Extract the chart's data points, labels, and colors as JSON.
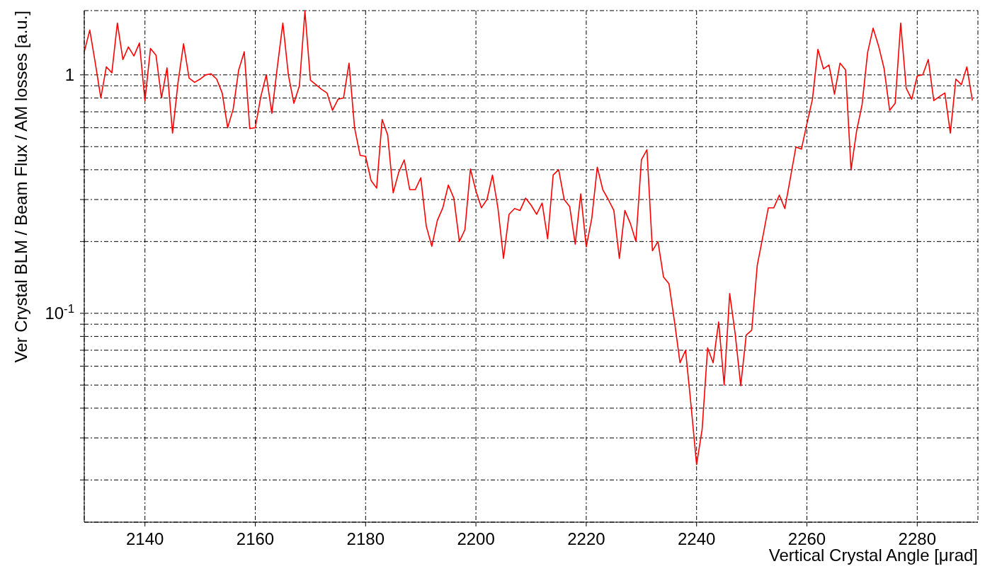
{
  "chart_data": {
    "type": "line",
    "xlabel": "Vertical Crystal Angle [μrad]",
    "ylabel": "Ver Crystal BLM / Beam Flux / AM losses [a.u.]",
    "x": [
      2129,
      2130,
      2131,
      2132,
      2133,
      2134,
      2135,
      2136,
      2137,
      2138,
      2139,
      2140,
      2141,
      2142,
      2143,
      2144,
      2145,
      2146,
      2147,
      2148,
      2149,
      2150,
      2151,
      2152,
      2153,
      2154,
      2155,
      2156,
      2157,
      2158,
      2159,
      2160,
      2161,
      2162,
      2163,
      2164,
      2165,
      2166,
      2167,
      2168,
      2169,
      2170,
      2171,
      2172,
      2173,
      2174,
      2175,
      2176,
      2177,
      2178,
      2179,
      2180,
      2181,
      2182,
      2183,
      2184,
      2185,
      2186,
      2187,
      2188,
      2189,
      2190,
      2191,
      2192,
      2193,
      2194,
      2195,
      2196,
      2197,
      2198,
      2199,
      2200,
      2201,
      2202,
      2203,
      2204,
      2205,
      2206,
      2207,
      2208,
      2209,
      2210,
      2211,
      2212,
      2213,
      2214,
      2215,
      2216,
      2217,
      2218,
      2219,
      2220,
      2221,
      2222,
      2223,
      2224,
      2225,
      2226,
      2227,
      2228,
      2229,
      2230,
      2231,
      2232,
      2233,
      2234,
      2235,
      2236,
      2237,
      2238,
      2239,
      2240,
      2241,
      2242,
      2243,
      2244,
      2245,
      2246,
      2247,
      2248,
      2249,
      2250,
      2251,
      2252,
      2253,
      2254,
      2255,
      2256,
      2257,
      2258,
      2259,
      2260,
      2261,
      2262,
      2263,
      2264,
      2265,
      2266,
      2267,
      2268,
      2269,
      2270,
      2271,
      2272,
      2273,
      2274,
      2275,
      2276,
      2277,
      2278,
      2279,
      2280,
      2281,
      2282,
      2283,
      2284,
      2285,
      2286,
      2287,
      2288,
      2289,
      2290
    ],
    "series": [
      {
        "color": "#ff0000",
        "values": [
          1.25,
          1.54,
          1.12,
          0.8,
          1.08,
          1.02,
          1.65,
          1.16,
          1.31,
          1.2,
          1.36,
          0.78,
          1.29,
          1.21,
          0.8,
          1.07,
          0.57,
          0.93,
          1.35,
          0.97,
          0.93,
          0.96,
          1.0,
          1.01,
          0.96,
          0.84,
          0.6,
          0.72,
          1.05,
          1.25,
          0.595,
          0.6,
          0.81,
          1.0,
          0.69,
          1.08,
          1.65,
          1.0,
          0.76,
          0.9,
          1.85,
          0.95,
          0.91,
          0.87,
          0.84,
          0.71,
          0.79,
          0.8,
          1.12,
          0.6,
          0.46,
          0.455,
          0.36,
          0.335,
          0.65,
          0.56,
          0.32,
          0.39,
          0.44,
          0.33,
          0.33,
          0.37,
          0.232,
          0.191,
          0.245,
          0.277,
          0.345,
          0.304,
          0.2,
          0.224,
          0.403,
          0.326,
          0.277,
          0.3,
          0.38,
          0.275,
          0.17,
          0.26,
          0.275,
          0.27,
          0.304,
          0.284,
          0.26,
          0.29,
          0.205,
          0.38,
          0.4,
          0.3,
          0.28,
          0.195,
          0.317,
          0.19,
          0.25,
          0.41,
          0.33,
          0.3,
          0.27,
          0.17,
          0.27,
          0.238,
          0.2,
          0.44,
          0.485,
          0.183,
          0.2,
          0.142,
          0.133,
          0.092,
          0.062,
          0.07,
          0.041,
          0.0232,
          0.0325,
          0.0716,
          0.062,
          0.092,
          0.05,
          0.121,
          0.082,
          0.0497,
          0.081,
          0.085,
          0.159,
          0.209,
          0.277,
          0.277,
          0.313,
          0.275,
          0.369,
          0.498,
          0.488,
          0.624,
          0.79,
          1.28,
          1.06,
          1.1,
          0.83,
          1.12,
          1.05,
          0.4,
          0.58,
          0.75,
          1.24,
          1.57,
          1.32,
          1.06,
          0.71,
          0.76,
          1.65,
          0.88,
          0.79,
          0.99,
          1.0,
          1.16,
          0.78,
          0.81,
          0.84,
          0.57,
          0.96,
          0.91,
          1.08,
          0.78
        ]
      }
    ],
    "xlim": [
      2129,
      2291
    ],
    "xticks": [
      2140,
      2160,
      2180,
      2200,
      2220,
      2240,
      2260,
      2280
    ],
    "ylim": [
      0.0133,
      1.86
    ],
    "log": "y",
    "yticks": [
      {
        "value": 0.02,
        "label": null
      },
      {
        "value": 0.03,
        "label": null
      },
      {
        "value": 0.04,
        "label": null
      },
      {
        "value": 0.05,
        "label": null
      },
      {
        "value": 0.06,
        "label": null
      },
      {
        "value": 0.07,
        "label": null
      },
      {
        "value": 0.08,
        "label": null
      },
      {
        "value": 0.09,
        "label": null
      },
      {
        "value": 0.1,
        "label": "10$^{-1}$"
      },
      {
        "value": 0.2,
        "label": null
      },
      {
        "value": 0.3,
        "label": null
      },
      {
        "value": 0.4,
        "label": null
      },
      {
        "value": 0.5,
        "label": null
      },
      {
        "value": 0.6,
        "label": null
      },
      {
        "value": 0.7,
        "label": null
      },
      {
        "value": 0.8,
        "label": null
      },
      {
        "value": 0.9,
        "label": null
      },
      {
        "value": 1,
        "label": "1"
      }
    ],
    "grid": true,
    "marker": "none",
    "line_style": "solid"
  }
}
